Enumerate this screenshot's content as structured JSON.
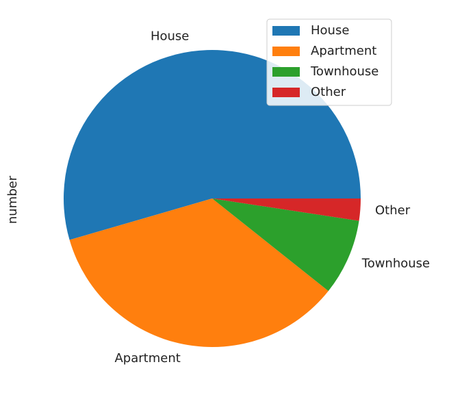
{
  "chart_data": {
    "type": "pie",
    "title": "",
    "ylabel": "number",
    "categories": [
      "House",
      "Apartment",
      "Townhouse",
      "Other"
    ],
    "values": [
      54.5,
      34.8,
      8.3,
      2.4
    ],
    "colors": [
      "#1f77b4",
      "#ff7f0e",
      "#2ca02c",
      "#d62728"
    ],
    "legend": {
      "placement": "top-right",
      "entries": [
        "House",
        "Apartment",
        "Townhouse",
        "Other"
      ]
    },
    "start_angle_deg": 0,
    "direction": "counterclockwise"
  }
}
